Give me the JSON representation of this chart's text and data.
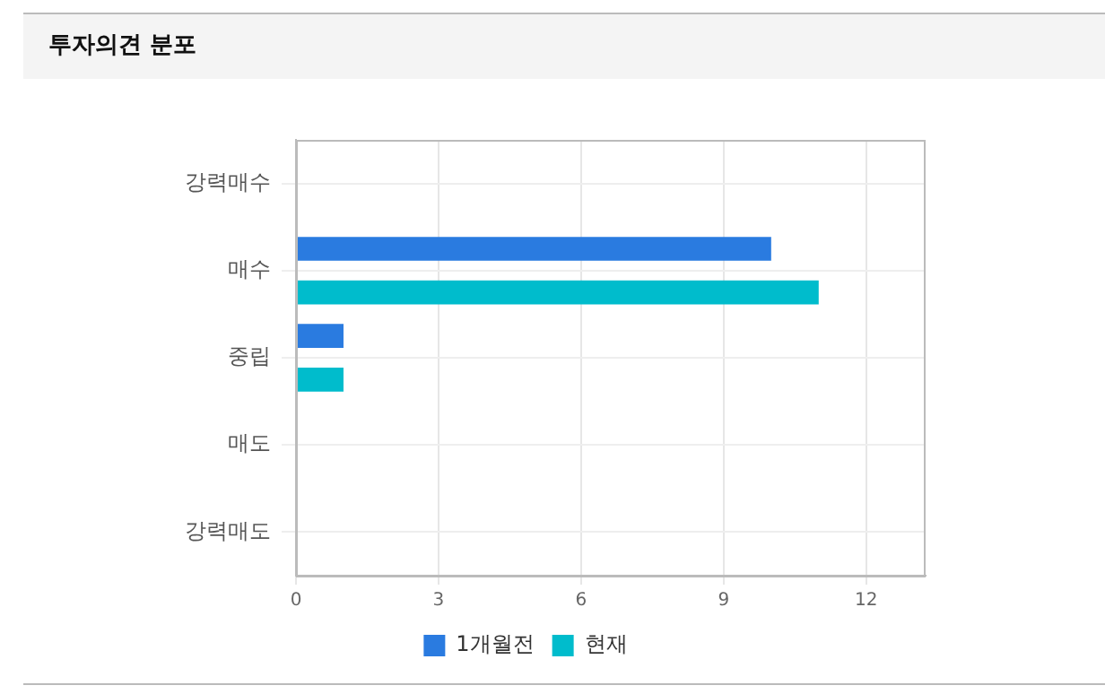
{
  "chart_data": {
    "type": "bar",
    "orientation": "horizontal",
    "title": "투자의견 분포",
    "categories": [
      "강력매수",
      "매수",
      "중립",
      "매도",
      "강력매도"
    ],
    "series": [
      {
        "name": "1개월전",
        "color": "#2a7be0",
        "values": [
          0,
          10,
          1,
          0,
          0
        ]
      },
      {
        "name": "현재",
        "color": "#00bccc",
        "values": [
          0,
          11,
          1,
          0,
          0
        ]
      }
    ],
    "xlim": [
      0,
      13.25
    ],
    "xticks": [
      0,
      3,
      6,
      9,
      12
    ],
    "grid": true,
    "legend": "bottom"
  }
}
